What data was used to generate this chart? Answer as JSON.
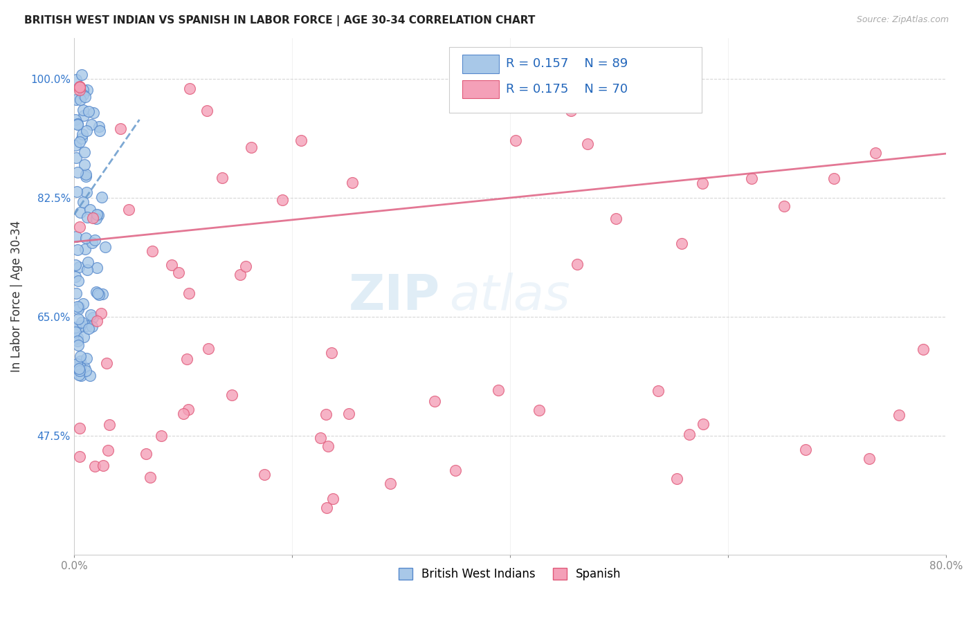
{
  "title": "BRITISH WEST INDIAN VS SPANISH IN LABOR FORCE | AGE 30-34 CORRELATION CHART",
  "source": "Source: ZipAtlas.com",
  "ylabel": "In Labor Force | Age 30-34",
  "ytick_labels": [
    "100.0%",
    "82.5%",
    "65.0%",
    "47.5%"
  ],
  "ytick_values": [
    1.0,
    0.825,
    0.65,
    0.475
  ],
  "xlim": [
    0.0,
    0.8
  ],
  "ylim": [
    0.3,
    1.06
  ],
  "blue_R": 0.157,
  "blue_N": 89,
  "pink_R": 0.175,
  "pink_N": 70,
  "blue_color": "#a8c8e8",
  "pink_color": "#f4a0b8",
  "blue_edge": "#5588cc",
  "pink_edge": "#e05878",
  "blue_trendline_color": "#6699cc",
  "pink_trendline_color": "#e06888",
  "watermark_zip": "ZIP",
  "watermark_atlas": "atlas",
  "legend_blue_label": "British West Indians",
  "legend_pink_label": "Spanish"
}
